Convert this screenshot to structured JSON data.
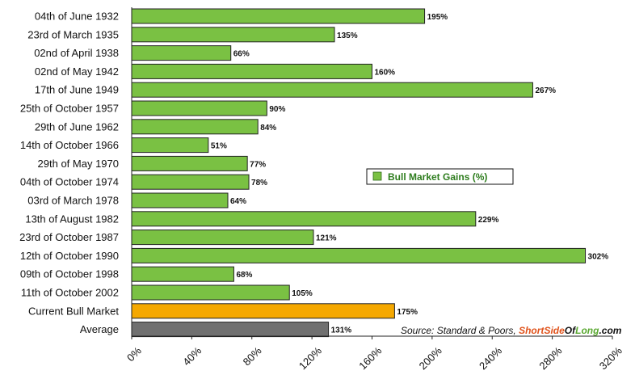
{
  "chart_data": {
    "type": "bar",
    "orientation": "horizontal",
    "categories": [
      "04th of June 1932",
      "23rd of March 1935",
      "02nd of April 1938",
      "02nd of May 1942",
      "17th of June 1949",
      "25th of October 1957",
      "29th of June 1962",
      "14th of October 1966",
      "29th of May 1970",
      "04th of October 1974",
      "03rd of March 1978",
      "13th of August 1982",
      "23rd of October 1987",
      "12th of October 1990",
      "09th of October 1998",
      "11th of October 2002",
      "Current Bull Market",
      "Average"
    ],
    "values": [
      195,
      135,
      66,
      160,
      267,
      90,
      84,
      51,
      77,
      78,
      64,
      229,
      121,
      302,
      68,
      105,
      175,
      131
    ],
    "value_labels": [
      "195%",
      "135%",
      "66%",
      "160%",
      "267%",
      "90%",
      "84%",
      "51%",
      "77%",
      "78%",
      "64%",
      "229%",
      "121%",
      "302%",
      "68%",
      "105%",
      "175%",
      "131%"
    ],
    "bar_colors": [
      "#7ac143",
      "#7ac143",
      "#7ac143",
      "#7ac143",
      "#7ac143",
      "#7ac143",
      "#7ac143",
      "#7ac143",
      "#7ac143",
      "#7ac143",
      "#7ac143",
      "#7ac143",
      "#7ac143",
      "#7ac143",
      "#7ac143",
      "#7ac143",
      "#f5a800",
      "#707070"
    ],
    "xlim": [
      0,
      320
    ],
    "x_ticks": [
      0,
      40,
      80,
      120,
      160,
      200,
      240,
      280,
      320
    ],
    "x_tick_labels": [
      "0%",
      "40%",
      "80%",
      "120%",
      "160%",
      "200%",
      "240%",
      "280%",
      "320%"
    ],
    "grid": false,
    "legend": {
      "placement": "center-right",
      "entries": [
        {
          "name": "Bull Market Gains (%)",
          "color": "#7ac143"
        }
      ]
    },
    "source": {
      "prefix": "Source: Standard & Poors, ",
      "brand_part1": "Short",
      "brand_part2": "Side",
      "brand_part3": "Of",
      "brand_part4": "Long",
      "brand_part5": ".com",
      "brand_color_dark": "#e0531c",
      "brand_color_green": "#5aa831",
      "brand_color_black": "#111111"
    },
    "title": "",
    "xlabel": "",
    "ylabel": ""
  }
}
